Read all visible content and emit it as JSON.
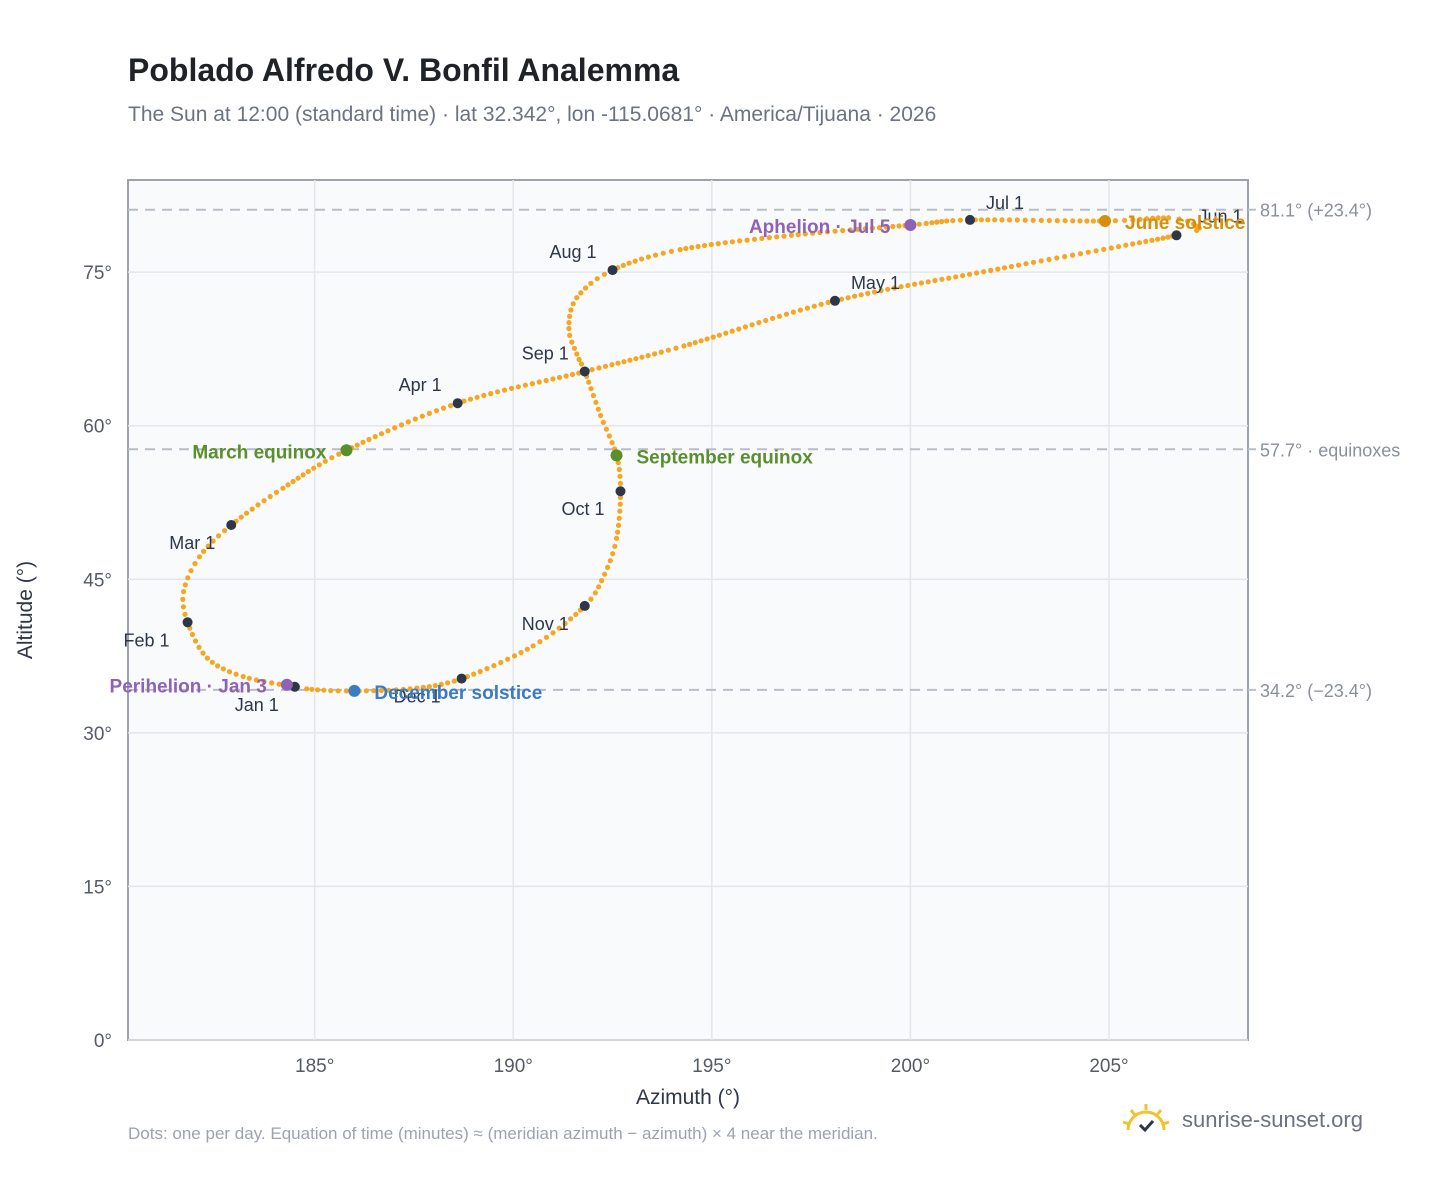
{
  "header": {
    "title": "Poblado Alfredo V. Bonfil Analemma",
    "subtitle": "The Sun at 12:00 (standard time) · lat 32.342°, lon -115.0681° · America/Tijuana · 2026"
  },
  "footer": {
    "note": "Dots: one per day. Equation of time (minutes) ≈ (meridian azimuth − azimuth) × 4 near the meridian.",
    "brand": "sunrise-sunset.org"
  },
  "colors": {
    "curve": "#f5a623",
    "month_dot": "#2d3748",
    "equinox": "#5a8f2e",
    "december_solstice": "#3b7bc4",
    "june_solstice": "#d4900a",
    "apsis": "#8e62b6",
    "reference_line": "#b8bec6",
    "plot_bg": "#f8fafc",
    "grid": "#e3e7ec",
    "axis_text": "#555b64",
    "reference_text": "#8a9099"
  },
  "chart_data": {
    "type": "scatter",
    "xlabel": "Azimuth (°)",
    "ylabel": "Altitude (°)",
    "xlim": [
      180.3,
      208.5
    ],
    "ylim": [
      0,
      84
    ],
    "xticks": [
      185,
      190,
      195,
      200,
      205
    ],
    "xtick_labels": [
      "185°",
      "190°",
      "195°",
      "200°",
      "205°"
    ],
    "yticks": [
      0,
      15,
      30,
      45,
      60,
      75
    ],
    "ytick_labels": [
      "0°",
      "15°",
      "30°",
      "45°",
      "60°",
      "75°"
    ],
    "grid": true,
    "reference_lines": [
      {
        "y": 81.1,
        "label": "81.1° (+23.4°)"
      },
      {
        "y": 57.7,
        "label": "57.7° · equinoxes"
      },
      {
        "y": 34.2,
        "label": "34.2° (−23.4°)"
      }
    ],
    "month_points": [
      {
        "label": "Jan 1",
        "az": 184.5,
        "alt": 34.5
      },
      {
        "label": "Feb 1",
        "az": 181.8,
        "alt": 40.8
      },
      {
        "label": "Mar 1",
        "az": 182.9,
        "alt": 50.3
      },
      {
        "label": "Apr 1",
        "az": 188.6,
        "alt": 62.2
      },
      {
        "label": "May 1",
        "az": 198.1,
        "alt": 72.2
      },
      {
        "label": "Jun 1",
        "az": 206.7,
        "alt": 78.6
      },
      {
        "label": "Jul 1",
        "az": 201.5,
        "alt": 80.1
      },
      {
        "label": "Aug 1",
        "az": 192.5,
        "alt": 75.2
      },
      {
        "label": "Sep 1",
        "az": 191.8,
        "alt": 65.3
      },
      {
        "label": "Oct 1",
        "az": 192.7,
        "alt": 53.6
      },
      {
        "label": "Nov 1",
        "az": 191.8,
        "alt": 42.4
      },
      {
        "label": "Dec 1",
        "az": 188.7,
        "alt": 35.3
      }
    ],
    "events": [
      {
        "label": "March equinox",
        "az": 185.8,
        "alt": 57.6,
        "kind": "equinox"
      },
      {
        "label": "September equinox",
        "az": 192.6,
        "alt": 57.1,
        "kind": "equinox"
      },
      {
        "label": "June solstice",
        "az": 204.9,
        "alt": 80.0,
        "kind": "june_solstice"
      },
      {
        "label": "December solstice",
        "az": 186.0,
        "alt": 34.1,
        "kind": "december_solstice"
      },
      {
        "label": "Perihelion · Jan 3",
        "az": 184.3,
        "alt": 34.7,
        "kind": "apsis"
      },
      {
        "label": "Aphelion · Jul 5",
        "az": 200.0,
        "alt": 79.6,
        "kind": "apsis"
      }
    ],
    "curve_points": [
      [
        185.8,
        34.1
      ],
      [
        184.8,
        34.3
      ],
      [
        184.3,
        34.7
      ],
      [
        184.5,
        34.5
      ],
      [
        183.2,
        35.5
      ],
      [
        182.3,
        37.3
      ],
      [
        181.8,
        40.8
      ],
      [
        181.7,
        43.8
      ],
      [
        182.1,
        47.2
      ],
      [
        182.9,
        50.3
      ],
      [
        184.2,
        53.9
      ],
      [
        185.8,
        57.6
      ],
      [
        188.6,
        62.2
      ],
      [
        191.8,
        65.3
      ],
      [
        194.3,
        67.8
      ],
      [
        198.1,
        72.2
      ],
      [
        202.2,
        75.3
      ],
      [
        206.7,
        78.6
      ],
      [
        207.2,
        79.5
      ],
      [
        206.5,
        80.3
      ],
      [
        204.9,
        80.0
      ],
      [
        201.5,
        80.1
      ],
      [
        200.0,
        79.6
      ],
      [
        197.0,
        78.6
      ],
      [
        194.2,
        77.2
      ],
      [
        192.5,
        75.2
      ],
      [
        191.6,
        72.5
      ],
      [
        191.4,
        69.5
      ],
      [
        191.6,
        67.0
      ],
      [
        191.8,
        65.3
      ],
      [
        192.2,
        61.0
      ],
      [
        192.6,
        57.1
      ],
      [
        192.7,
        53.6
      ],
      [
        192.6,
        49.0
      ],
      [
        192.3,
        45.5
      ],
      [
        191.8,
        42.4
      ],
      [
        190.5,
        38.5
      ],
      [
        188.7,
        35.3
      ],
      [
        187.4,
        34.3
      ],
      [
        185.8,
        34.1
      ]
    ]
  }
}
